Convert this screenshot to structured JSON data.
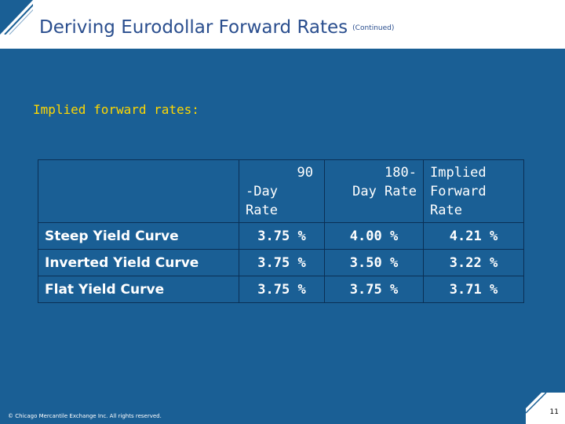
{
  "header": {
    "title": "Deriving Eurodollar Forward Rates",
    "title_suffix": "(Continued)"
  },
  "subtitle": "Implied forward rates:",
  "table": {
    "columns": [
      {
        "lines": [
          ""
        ]
      },
      {
        "lines": [
          "90",
          "-Day",
          "Rate"
        ]
      },
      {
        "lines": [
          "180-",
          "Day Rate"
        ]
      },
      {
        "lines": [
          "Implied",
          "Forward",
          "Rate"
        ]
      }
    ],
    "rows": [
      {
        "label": "Steep Yield Curve",
        "values": [
          "3.75 %",
          "4.00 %",
          "4.21 %"
        ]
      },
      {
        "label": "Inverted Yield Curve",
        "values": [
          "3.75 %",
          "3.50 %",
          "3.22 %"
        ]
      },
      {
        "label": "Flat Yield Curve",
        "values": [
          "3.75 %",
          "3.75 %",
          "3.71 %"
        ]
      }
    ]
  },
  "footer": {
    "copyright": "© Chicago Mercantile Exchange Inc. All rights reserved.",
    "page_number": "11"
  },
  "colors": {
    "background": "#1a5f95",
    "title": "#2a4e8e",
    "subtitle": "#ffd700"
  }
}
